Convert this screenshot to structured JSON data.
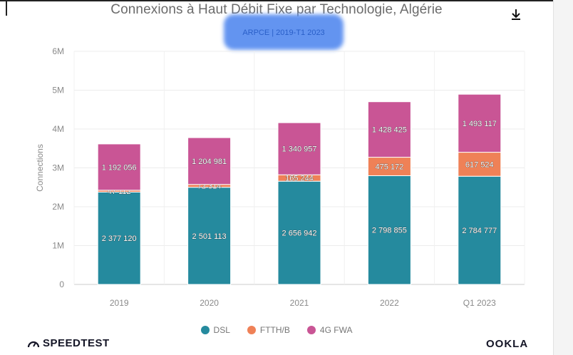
{
  "header": {
    "title": "Connexions à Haut Débit Fixe par Technologie, Algérie",
    "subtitle": "ARPCE | 2019-T1 2023",
    "download_icon": "download-icon"
  },
  "chart_data": {
    "type": "bar",
    "stacked": true,
    "title": "Connexions à Haut Débit Fixe par Technologie, Algérie",
    "xlabel": "",
    "ylabel": "Connections",
    "ylim": [
      0,
      6000000
    ],
    "yticks": [
      "0",
      "1M",
      "2M",
      "3M",
      "4M",
      "5M",
      "6M"
    ],
    "categories": [
      "2019",
      "2020",
      "2021",
      "2022",
      "Q1 2023"
    ],
    "series": [
      {
        "name": "DSL",
        "color": "#258a9e",
        "values": [
          2377120,
          2501113,
          2656942,
          2798855,
          2784777
        ],
        "labels": [
          "2 377 120",
          "2 501 113",
          "2 656 942",
          "2 798 855",
          "2 784 777"
        ]
      },
      {
        "name": "FTTH/B",
        "color": "#ef8157",
        "values": [
          47112,
          72314,
          165244,
          475172,
          617524
        ],
        "labels": [
          "47 112",
          "72 314",
          "165 244",
          "475 172",
          "617 524"
        ]
      },
      {
        "name": "4G FWA",
        "color": "#c95595",
        "values": [
          1192056,
          1204981,
          1340957,
          1428425,
          1493117
        ],
        "labels": [
          "1 192 056",
          "1 204 981",
          "1 340 957",
          "1 428 425",
          "1 493 117"
        ]
      }
    ],
    "legend": "bottom-center"
  },
  "legend": {
    "items": [
      {
        "label": "DSL",
        "color": "#258a9e"
      },
      {
        "label": "FTTH/B",
        "color": "#ef8157"
      },
      {
        "label": "4G FWA",
        "color": "#c95595"
      }
    ]
  },
  "footer": {
    "speedtest_label": "SPEEDTEST",
    "speedtest_icon": "speedometer-icon",
    "ookla_label": "OOKLA"
  }
}
